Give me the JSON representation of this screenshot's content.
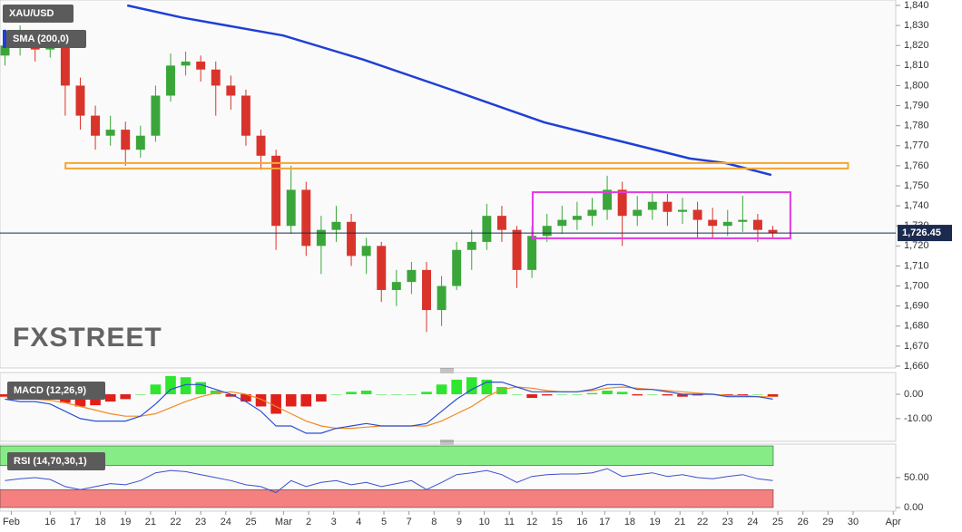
{
  "chart_data": [
    {
      "type": "candlestick",
      "title": "XAU/USD",
      "watermark": "FXSTREET",
      "x": [
        -1.8,
        -1.2,
        -0.6,
        0,
        0.6,
        1.2,
        1.8,
        2.4,
        3,
        3.6,
        4.2,
        4.8,
        5.4,
        6,
        6.6,
        7.2,
        7.8,
        8.4,
        9,
        9.6,
        10.2,
        10.8,
        11.4,
        12,
        12.6,
        13.2,
        13.8,
        14.4,
        15,
        15.6,
        16.2,
        16.8,
        17.4,
        18,
        18.6,
        19.2,
        19.8,
        20.4,
        21,
        21.6,
        22.2,
        22.8,
        23.4,
        24,
        24.6,
        25.2,
        25.8,
        26.4,
        27,
        27.6,
        28.2,
        28.8
      ],
      "open": [
        1815,
        1820,
        1822,
        1818,
        1820,
        1800,
        1785,
        1775,
        1778,
        1768,
        1775,
        1795,
        1810,
        1812,
        1808,
        1800,
        1795,
        1775,
        1765,
        1730,
        1748,
        1720,
        1728,
        1732,
        1715,
        1720,
        1698,
        1702,
        1708,
        1688,
        1700,
        1718,
        1722,
        1735,
        1728,
        1708,
        1725,
        1730,
        1733,
        1735,
        1738,
        1748,
        1735,
        1738,
        1742,
        1737,
        1738,
        1733,
        1730,
        1732,
        1733,
        1728
      ],
      "high": [
        1828,
        1830,
        1825,
        1826,
        1822,
        1804,
        1790,
        1785,
        1782,
        1780,
        1800,
        1816,
        1817,
        1815,
        1812,
        1805,
        1798,
        1778,
        1768,
        1760,
        1752,
        1735,
        1740,
        1736,
        1724,
        1722,
        1708,
        1712,
        1712,
        1705,
        1722,
        1728,
        1741,
        1740,
        1730,
        1730,
        1736,
        1740,
        1742,
        1744,
        1755,
        1752,
        1745,
        1747,
        1746,
        1744,
        1742,
        1739,
        1738,
        1745,
        1736,
        1730
      ],
      "low": [
        1810,
        1815,
        1812,
        1814,
        1785,
        1778,
        1768,
        1770,
        1760,
        1764,
        1772,
        1792,
        1805,
        1802,
        1785,
        1788,
        1770,
        1758,
        1718,
        1726,
        1715,
        1706,
        1722,
        1710,
        1706,
        1692,
        1690,
        1696,
        1677,
        1680,
        1698,
        1708,
        1718,
        1722,
        1699,
        1704,
        1722,
        1726,
        1728,
        1730,
        1733,
        1720,
        1730,
        1733,
        1730,
        1731,
        1724,
        1724,
        1725,
        1727,
        1722,
        1724
      ],
      "close": [
        1820,
        1822,
        1818,
        1820,
        1800,
        1785,
        1775,
        1778,
        1768,
        1775,
        1795,
        1810,
        1812,
        1808,
        1800,
        1795,
        1775,
        1765,
        1730,
        1748,
        1720,
        1728,
        1732,
        1715,
        1720,
        1698,
        1702,
        1708,
        1688,
        1700,
        1718,
        1722,
        1735,
        1728,
        1708,
        1725,
        1730,
        1733,
        1735,
        1738,
        1748,
        1735,
        1738,
        1742,
        1737,
        1738,
        1733,
        1730,
        1732,
        1733,
        1728,
        1726.45
      ],
      "up_color": "#3aa63a",
      "down_color": "#d9342b",
      "sma": {
        "name": "SMA (200,0)",
        "color": "#1f3fd6",
        "x": [
          3.07,
          5.24,
          9.29,
          12.47,
          16.09,
          19.7,
          23.32,
          25.49,
          26.93,
          28.74
        ],
        "values": [
          1840,
          1834,
          1825,
          1813,
          1797.5,
          1781.6,
          1770.4,
          1763.6,
          1761.3,
          1755.4
        ]
      },
      "resistance": {
        "value": 1760,
        "x": [
          0.61,
          31.8
        ],
        "color": "#f7a531"
      },
      "range_box": {
        "x": [
          19.23,
          29.5
        ],
        "y": [
          1723.8,
          1746.8
        ],
        "color": "#e23be2"
      },
      "last": {
        "value": 1726.45,
        "label": "1,726.45",
        "color": "#1b2a4e"
      },
      "xlim": [
        -2,
        33.7
      ],
      "xticks": [
        {
          "value": -1.55,
          "label": "Feb"
        },
        {
          "value": 0,
          "label": "16"
        },
        {
          "value": 1,
          "label": "17"
        },
        {
          "value": 2,
          "label": "18"
        },
        {
          "value": 3,
          "label": "19"
        },
        {
          "value": 4,
          "label": "21"
        },
        {
          "value": 5,
          "label": "22"
        },
        {
          "value": 6,
          "label": "23"
        },
        {
          "value": 7,
          "label": "24"
        },
        {
          "value": 8,
          "label": "25"
        },
        {
          "value": 9.3,
          "label": "Mar"
        },
        {
          "value": 10.3,
          "label": "2"
        },
        {
          "value": 11.3,
          "label": "3"
        },
        {
          "value": 12.3,
          "label": "4"
        },
        {
          "value": 13.3,
          "label": "5"
        },
        {
          "value": 14.3,
          "label": "7"
        },
        {
          "value": 15.3,
          "label": "8"
        },
        {
          "value": 16.3,
          "label": "9"
        },
        {
          "value": 17.3,
          "label": "10"
        },
        {
          "value": 18.3,
          "label": "11"
        },
        {
          "value": 19.2,
          "label": "12"
        },
        {
          "value": 20.2,
          "label": "15"
        },
        {
          "value": 21.2,
          "label": "16"
        },
        {
          "value": 22.1,
          "label": "17"
        },
        {
          "value": 23.1,
          "label": "18"
        },
        {
          "value": 24.1,
          "label": "19"
        },
        {
          "value": 25.1,
          "label": "21"
        },
        {
          "value": 26.0,
          "label": "22"
        },
        {
          "value": 27.0,
          "label": "23"
        },
        {
          "value": 28.0,
          "label": "24"
        },
        {
          "value": 29.0,
          "label": "25"
        },
        {
          "value": 30.0,
          "label": "26"
        },
        {
          "value": 31.0,
          "label": "29"
        },
        {
          "value": 32.0,
          "label": "30"
        },
        {
          "value": 33.6,
          "label": "Apr"
        }
      ],
      "ylim": [
        1660,
        1840
      ],
      "yticks": [
        {
          "value": 1840,
          "label": "1,840"
        },
        {
          "value": 1830,
          "label": "1,830"
        },
        {
          "value": 1820,
          "label": "1,820"
        },
        {
          "value": 1810,
          "label": "1,810"
        },
        {
          "value": 1800,
          "label": "1,800"
        },
        {
          "value": 1790,
          "label": "1,790"
        },
        {
          "value": 1780,
          "label": "1,780"
        },
        {
          "value": 1770,
          "label": "1,770"
        },
        {
          "value": 1760,
          "label": "1,760"
        },
        {
          "value": 1750,
          "label": "1,750"
        },
        {
          "value": 1740,
          "label": "1,740"
        },
        {
          "value": 1730,
          "label": "1,730"
        },
        {
          "value": 1720,
          "label": "1,720"
        },
        {
          "value": 1710,
          "label": "1,710"
        },
        {
          "value": 1700,
          "label": "1,700"
        },
        {
          "value": 1690,
          "label": "1,690"
        },
        {
          "value": 1680,
          "label": "1,680"
        },
        {
          "value": 1670,
          "label": "1,670"
        },
        {
          "value": 1660,
          "label": "1,660"
        }
      ]
    },
    {
      "type": "macd",
      "label": "MACD (12,26,9)",
      "macd": [
        -2,
        -3,
        -3,
        -4,
        -7,
        -10,
        -11,
        -11,
        -11,
        -9,
        -4,
        2,
        4,
        4,
        2,
        0,
        -3,
        -7,
        -13,
        -13,
        -16,
        -16,
        -14,
        -13,
        -12,
        -13,
        -13,
        -13,
        -12,
        -7,
        -2,
        2,
        5,
        5,
        3,
        1,
        1,
        1,
        1,
        2,
        4,
        4,
        2,
        2,
        1,
        0,
        0,
        0,
        -1,
        -1,
        -1,
        -2
      ],
      "signal": [
        -1,
        -1.5,
        -2,
        -2.5,
        -3.5,
        -5,
        -6.5,
        -8,
        -9,
        -9,
        -8,
        -5.5,
        -3,
        -1,
        0.5,
        1,
        0,
        -2,
        -5,
        -8,
        -11,
        -13,
        -14,
        -14,
        -13.5,
        -13,
        -13,
        -13,
        -13,
        -11,
        -8,
        -5,
        -1,
        2,
        3,
        2.5,
        1.5,
        1,
        1,
        1.5,
        2.5,
        3,
        2.5,
        2,
        1.5,
        1,
        0.5,
        0,
        -0.5,
        -0.5,
        -1,
        -1
      ],
      "histogram": [
        -1,
        -1.5,
        -1,
        -1.5,
        -3.5,
        -5,
        -4.5,
        -3,
        -2,
        0,
        4,
        7.5,
        7,
        5,
        1.5,
        -1,
        -3,
        -5,
        -8,
        -5,
        -5,
        -3,
        0,
        1,
        1.5,
        0,
        0,
        0,
        1,
        4,
        6,
        7,
        6,
        3,
        0,
        -1.5,
        -0.5,
        0,
        0,
        0.5,
        1.5,
        1,
        -0.5,
        0,
        -0.5,
        -1,
        -0.5,
        0,
        -0.5,
        -0.5,
        0,
        -1
      ],
      "macd_color": "#2b4fd6",
      "signal_color": "#f08a24",
      "positive_color": "#2ee62e",
      "negative_color": "#e0201a",
      "ylim": [
        -18.6,
        8.2
      ],
      "yticks": [
        {
          "value": 0,
          "label": "0.00"
        },
        {
          "value": -10,
          "label": "-10.00"
        }
      ]
    },
    {
      "type": "rsi",
      "label": "RSI (14,70,30,1)",
      "values": [
        45,
        48,
        50,
        47,
        35,
        30,
        35,
        40,
        38,
        45,
        58,
        62,
        60,
        55,
        50,
        45,
        38,
        35,
        25,
        45,
        35,
        42,
        45,
        38,
        42,
        35,
        40,
        45,
        30,
        42,
        55,
        58,
        62,
        55,
        42,
        52,
        55,
        56,
        56,
        58,
        65,
        52,
        55,
        58,
        52,
        55,
        50,
        48,
        52,
        55,
        48,
        45
      ],
      "color": "#3a4fd0",
      "levels": [
        70,
        30
      ],
      "band_colors": [
        "#86ec86",
        "#f48080"
      ],
      "ylim": [
        0,
        103
      ],
      "yticks": [
        {
          "value": 50,
          "label": "50.00"
        },
        {
          "value": 0,
          "label": "0.00"
        }
      ]
    }
  ]
}
